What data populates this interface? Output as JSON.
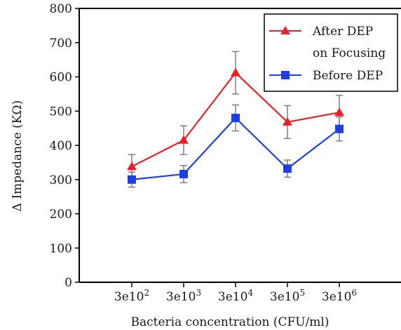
{
  "chart_data": {
    "type": "line",
    "title": "",
    "xlabel": "Bacteria concentration (CFU/ml)",
    "ylabel": "Δ Impedance (KΩ)",
    "ylim": [
      0,
      800
    ],
    "yticks": [
      0,
      100,
      200,
      300,
      400,
      500,
      600,
      700,
      800
    ],
    "categories": [
      {
        "base": "3e10",
        "exp": "2"
      },
      {
        "base": "3e10",
        "exp": "3"
      },
      {
        "base": "3e10",
        "exp": "4"
      },
      {
        "base": "3e10",
        "exp": "5"
      },
      {
        "base": "3e10",
        "exp": "6"
      }
    ],
    "grid": false,
    "legend_position": "top-right",
    "series": [
      {
        "name_lines": [
          "After DEP",
          "on Focusing"
        ],
        "marker": "triangle",
        "color": "#e8202a",
        "values": [
          338,
          415,
          612,
          468,
          496
        ],
        "error": [
          35,
          42,
          62,
          48,
          50
        ]
      },
      {
        "name_lines": [
          "Before DEP"
        ],
        "marker": "square",
        "color": "#1f3fe0",
        "values": [
          300,
          316,
          480,
          332,
          448
        ],
        "error": [
          22,
          25,
          38,
          25,
          35
        ]
      }
    ]
  }
}
